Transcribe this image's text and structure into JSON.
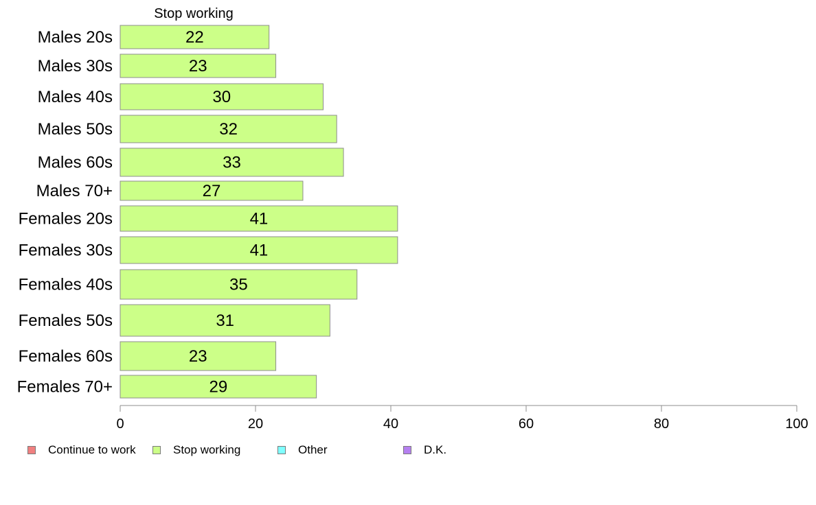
{
  "chart_data": {
    "type": "bar",
    "orientation": "horizontal",
    "stacked": true,
    "series_title": "Stop working",
    "categories": [
      "Males 20s",
      "Males 30s",
      "Males 40s",
      "Males 50s",
      "Males 60s",
      "Males 70+",
      "Females 20s",
      "Females 30s",
      "Females 40s",
      "Females 50s",
      "Females 60s",
      "Females 70+"
    ],
    "series": [
      {
        "name": "Stop working",
        "color": "#ccff88",
        "values": [
          22,
          23,
          30,
          32,
          33,
          27,
          41,
          41,
          35,
          31,
          23,
          29
        ]
      }
    ],
    "xlim": [
      0,
      100
    ],
    "xticks": [
      0,
      20,
      40,
      60,
      80,
      100
    ],
    "grid": false,
    "legend_position": "bottom",
    "legend": [
      {
        "name": "Continue to work",
        "color": "#f08080"
      },
      {
        "name": "Stop working",
        "color": "#ccff88"
      },
      {
        "name": "Other",
        "color": "#80ffff"
      },
      {
        "name": "D.K.",
        "color": "#b580f0"
      }
    ]
  }
}
